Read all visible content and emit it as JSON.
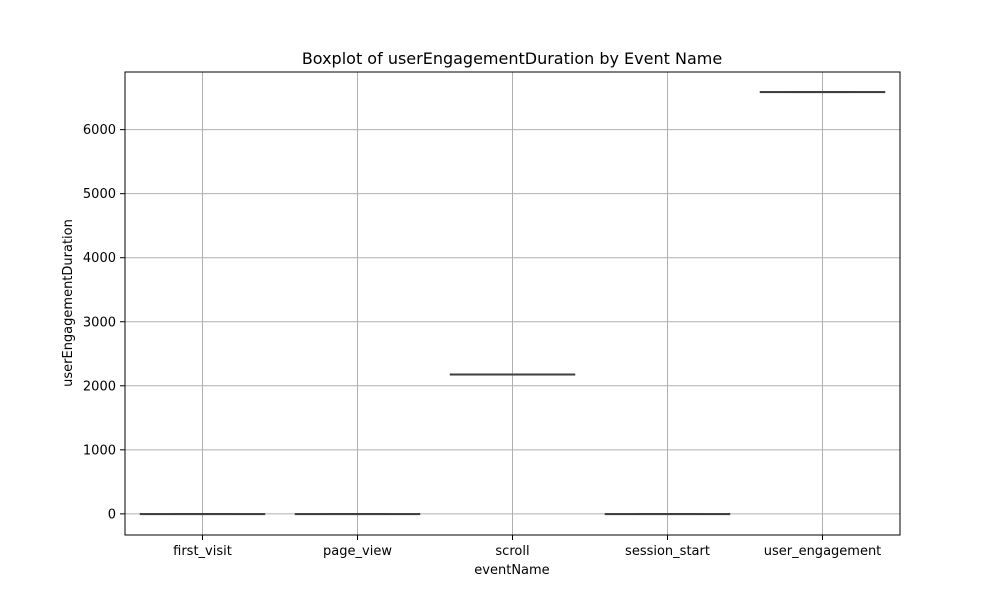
{
  "chart_data": {
    "type": "boxplot",
    "title": "Boxplot of userEngagementDuration by Event Name",
    "xlabel": "eventName",
    "ylabel": "userEngagementDuration",
    "ylim": [
      -330,
      6900
    ],
    "yticks": [
      0,
      1000,
      2000,
      3000,
      4000,
      5000,
      6000
    ],
    "grid": true,
    "categories": [
      "first_visit",
      "page_view",
      "scroll",
      "session_start",
      "user_engagement"
    ],
    "boxes": [
      {
        "category": "first_visit",
        "min": 0,
        "q1": 0,
        "median": 0,
        "q3": 0,
        "max": 0
      },
      {
        "category": "page_view",
        "min": 0,
        "q1": 0,
        "median": 0,
        "q3": 0,
        "max": 0
      },
      {
        "category": "scroll",
        "min": 2180,
        "q1": 2180,
        "median": 2180,
        "q3": 2180,
        "max": 2180
      },
      {
        "category": "session_start",
        "min": 0,
        "q1": 0,
        "median": 0,
        "q3": 0,
        "max": 0
      },
      {
        "category": "user_engagement",
        "min": 6590,
        "q1": 6590,
        "median": 6590,
        "q3": 6590,
        "max": 6590
      }
    ],
    "colors": {
      "box_line": "#3f3f3f",
      "grid": "#b0b0b0",
      "frame": "#000000"
    }
  }
}
